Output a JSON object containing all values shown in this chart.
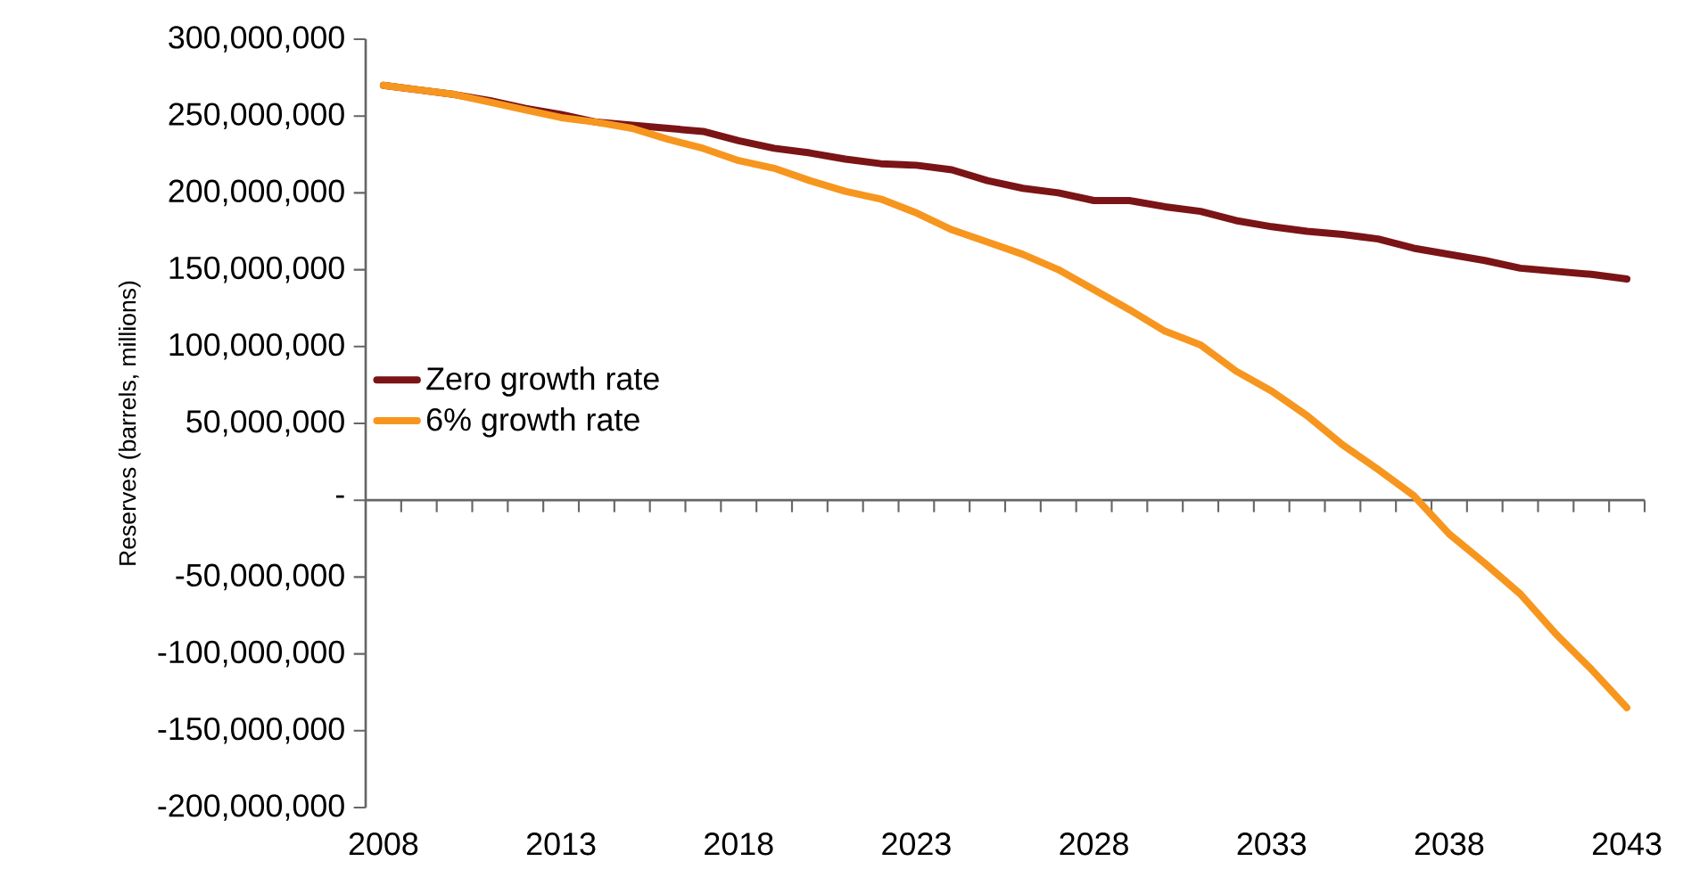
{
  "chart_data": {
    "type": "line",
    "ylabel": "Reserves (barrels, millions)",
    "categories": [
      "2008",
      null,
      null,
      null,
      null,
      "2013",
      null,
      null,
      null,
      null,
      "2018",
      null,
      null,
      null,
      null,
      "2023",
      null,
      null,
      null,
      null,
      "2028",
      null,
      null,
      null,
      null,
      "2033",
      null,
      null,
      null,
      null,
      "2038",
      null,
      null,
      null,
      null,
      "2043"
    ],
    "series": [
      {
        "name": "Zero growth rate",
        "color": "#7b1416",
        "values": [
          270000000,
          267000000,
          264000000,
          260000000,
          255000000,
          251000000,
          246000000,
          244000000,
          242000000,
          240000000,
          234000000,
          229000000,
          226000000,
          222000000,
          219000000,
          218000000,
          215000000,
          208000000,
          203000000,
          200000000,
          195000000,
          195000000,
          191000000,
          188000000,
          182000000,
          178000000,
          175000000,
          173000000,
          170000000,
          164000000,
          160000000,
          156000000,
          151000000,
          149000000,
          147000000,
          144000000
        ]
      },
      {
        "name": "6% growth rate",
        "color": "#f7961e",
        "values": [
          270000000,
          267000000,
          264000000,
          259000000,
          254000000,
          249000000,
          246000000,
          242000000,
          235000000,
          229000000,
          221000000,
          216000000,
          208000000,
          201000000,
          196000000,
          187000000,
          176000000,
          168000000,
          160000000,
          150000000,
          137000000,
          124000000,
          110000000,
          101000000,
          84000000,
          71000000,
          55000000,
          36000000,
          20000000,
          3000000,
          -22000000,
          -41000000,
          -61000000,
          -87000000,
          -110000000,
          -135000000
        ]
      }
    ],
    "ylim": [
      -200000000,
      300000000
    ],
    "yticks": [
      {
        "value": -200000000,
        "label": "-200,000,000"
      },
      {
        "value": -150000000,
        "label": "-150,000,000"
      },
      {
        "value": -100000000,
        "label": "-100,000,000"
      },
      {
        "value": -50000000,
        "label": "-50,000,000"
      },
      {
        "value": 0,
        "label": "-"
      },
      {
        "value": 50000000,
        "label": "50,000,000"
      },
      {
        "value": 100000000,
        "label": "100,000,000"
      },
      {
        "value": 150000000,
        "label": "150,000,000"
      },
      {
        "value": 200000000,
        "label": "200,000,000"
      },
      {
        "value": 250000000,
        "label": "250,000,000"
      },
      {
        "value": 300000000,
        "label": "300,000,000"
      }
    ],
    "legend": "left"
  }
}
